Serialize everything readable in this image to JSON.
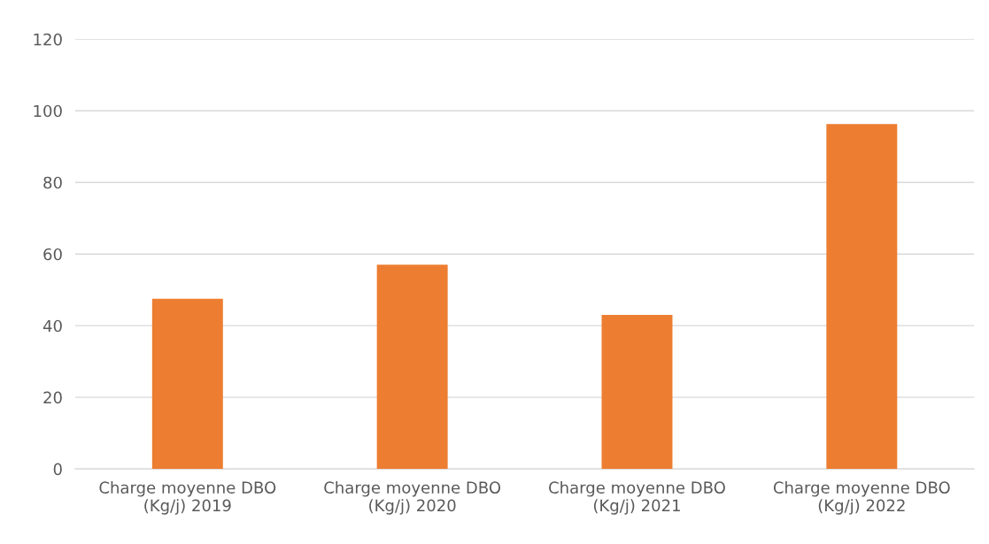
{
  "chart_data": {
    "type": "bar",
    "categories": [
      "Charge moyenne DBO\n(Kg/j) 2019",
      "Charge moyenne DBO\n(Kg/j) 2020",
      "Charge moyenne DBO\n(Kg/j) 2021",
      "Charge moyenne DBO\n(Kg/j) 2022"
    ],
    "values": [
      47.5,
      57,
      43,
      96.3
    ],
    "color": "#ed7d31",
    "ylim": [
      0,
      120
    ],
    "yticks": [
      0,
      20,
      40,
      60,
      80,
      100,
      120
    ],
    "grid": "y"
  }
}
